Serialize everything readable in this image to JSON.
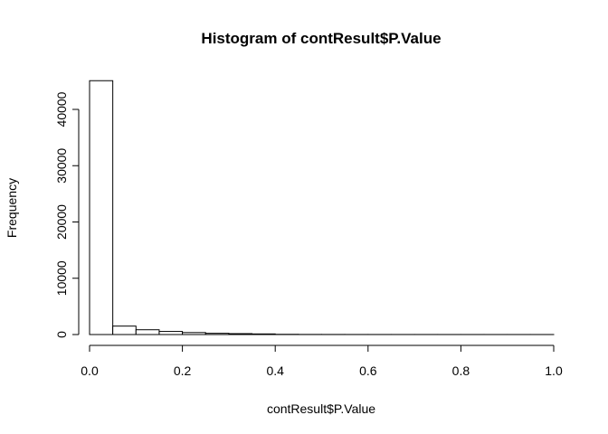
{
  "chart_data": {
    "type": "bar",
    "title": "Histogram of contResult$P.Value",
    "xlabel": "contResult$P.Value",
    "ylabel": "Frequency",
    "xlim": [
      0,
      1
    ],
    "ylim": [
      0,
      46000
    ],
    "grid": false,
    "bin_width": 0.05,
    "bin_starts": [
      0.0,
      0.05,
      0.1,
      0.15,
      0.2,
      0.25,
      0.3,
      0.35,
      0.4,
      0.45,
      0.5,
      0.55,
      0.6,
      0.65,
      0.7,
      0.75,
      0.8,
      0.85,
      0.9,
      0.95
    ],
    "values": [
      45100,
      1500,
      850,
      550,
      350,
      220,
      160,
      110,
      40,
      20,
      15,
      12,
      10,
      8,
      8,
      6,
      6,
      5,
      5,
      5
    ],
    "x_ticks": [
      0.0,
      0.2,
      0.4,
      0.6,
      0.8,
      1.0
    ],
    "x_tick_labels": [
      "0.0",
      "0.2",
      "0.4",
      "0.6",
      "0.8",
      "1.0"
    ],
    "y_ticks": [
      0,
      10000,
      20000,
      30000,
      40000
    ],
    "y_tick_labels": [
      "0",
      "10000",
      "20000",
      "30000",
      "40000"
    ]
  }
}
